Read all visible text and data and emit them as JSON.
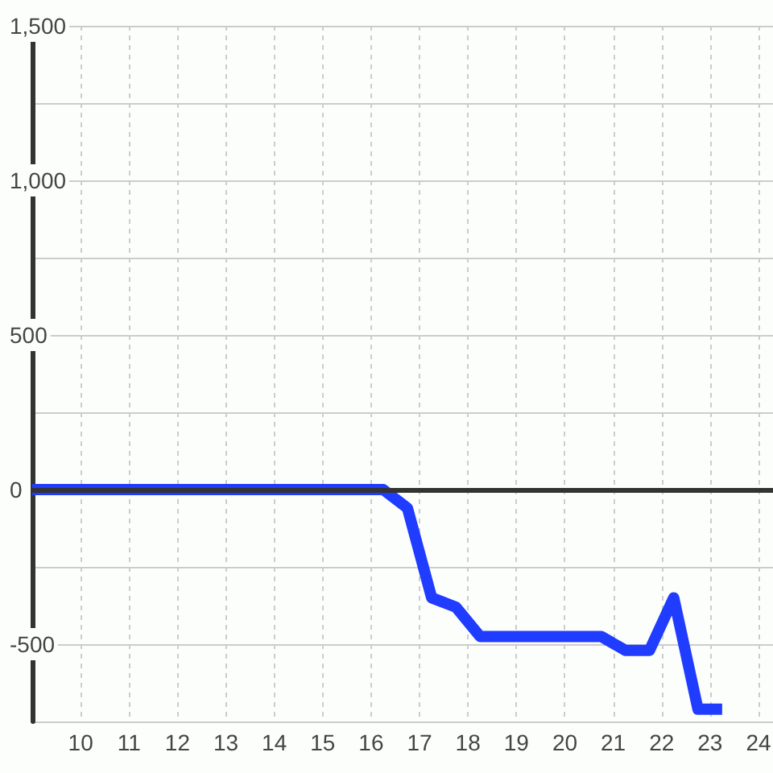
{
  "chart_data": {
    "type": "line",
    "x": [
      9,
      16.25,
      16.75,
      17.25,
      17.75,
      18.25,
      20.75,
      21.25,
      21.75,
      22.25,
      22.75,
      23.25
    ],
    "values": [
      0,
      0,
      -60,
      -350,
      -380,
      -475,
      -475,
      -520,
      -520,
      -350,
      -710,
      -710
    ],
    "color": "#1f3cff",
    "xlim": [
      9,
      24.3
    ],
    "xticks": [
      10,
      11,
      12,
      13,
      14,
      15,
      16,
      17,
      18,
      19,
      20,
      21,
      22,
      23,
      24
    ],
    "ylim": [
      -750,
      1500
    ],
    "yticks": [
      {
        "value": -750,
        "label": null
      },
      -500,
      {
        "value": -250,
        "label": null
      },
      0,
      {
        "value": 250,
        "label": null
      },
      500,
      {
        "value": 750,
        "label": null
      },
      {
        "value": 1000,
        "label": "1,000"
      },
      {
        "value": 1250,
        "label": null
      },
      {
        "value": 1500,
        "label": "1,500"
      }
    ],
    "grid": true,
    "marker": "none",
    "line_style": "solid",
    "ref_lines": [
      {
        "axis": "y",
        "value": 0,
        "color": "#333333"
      }
    ]
  }
}
